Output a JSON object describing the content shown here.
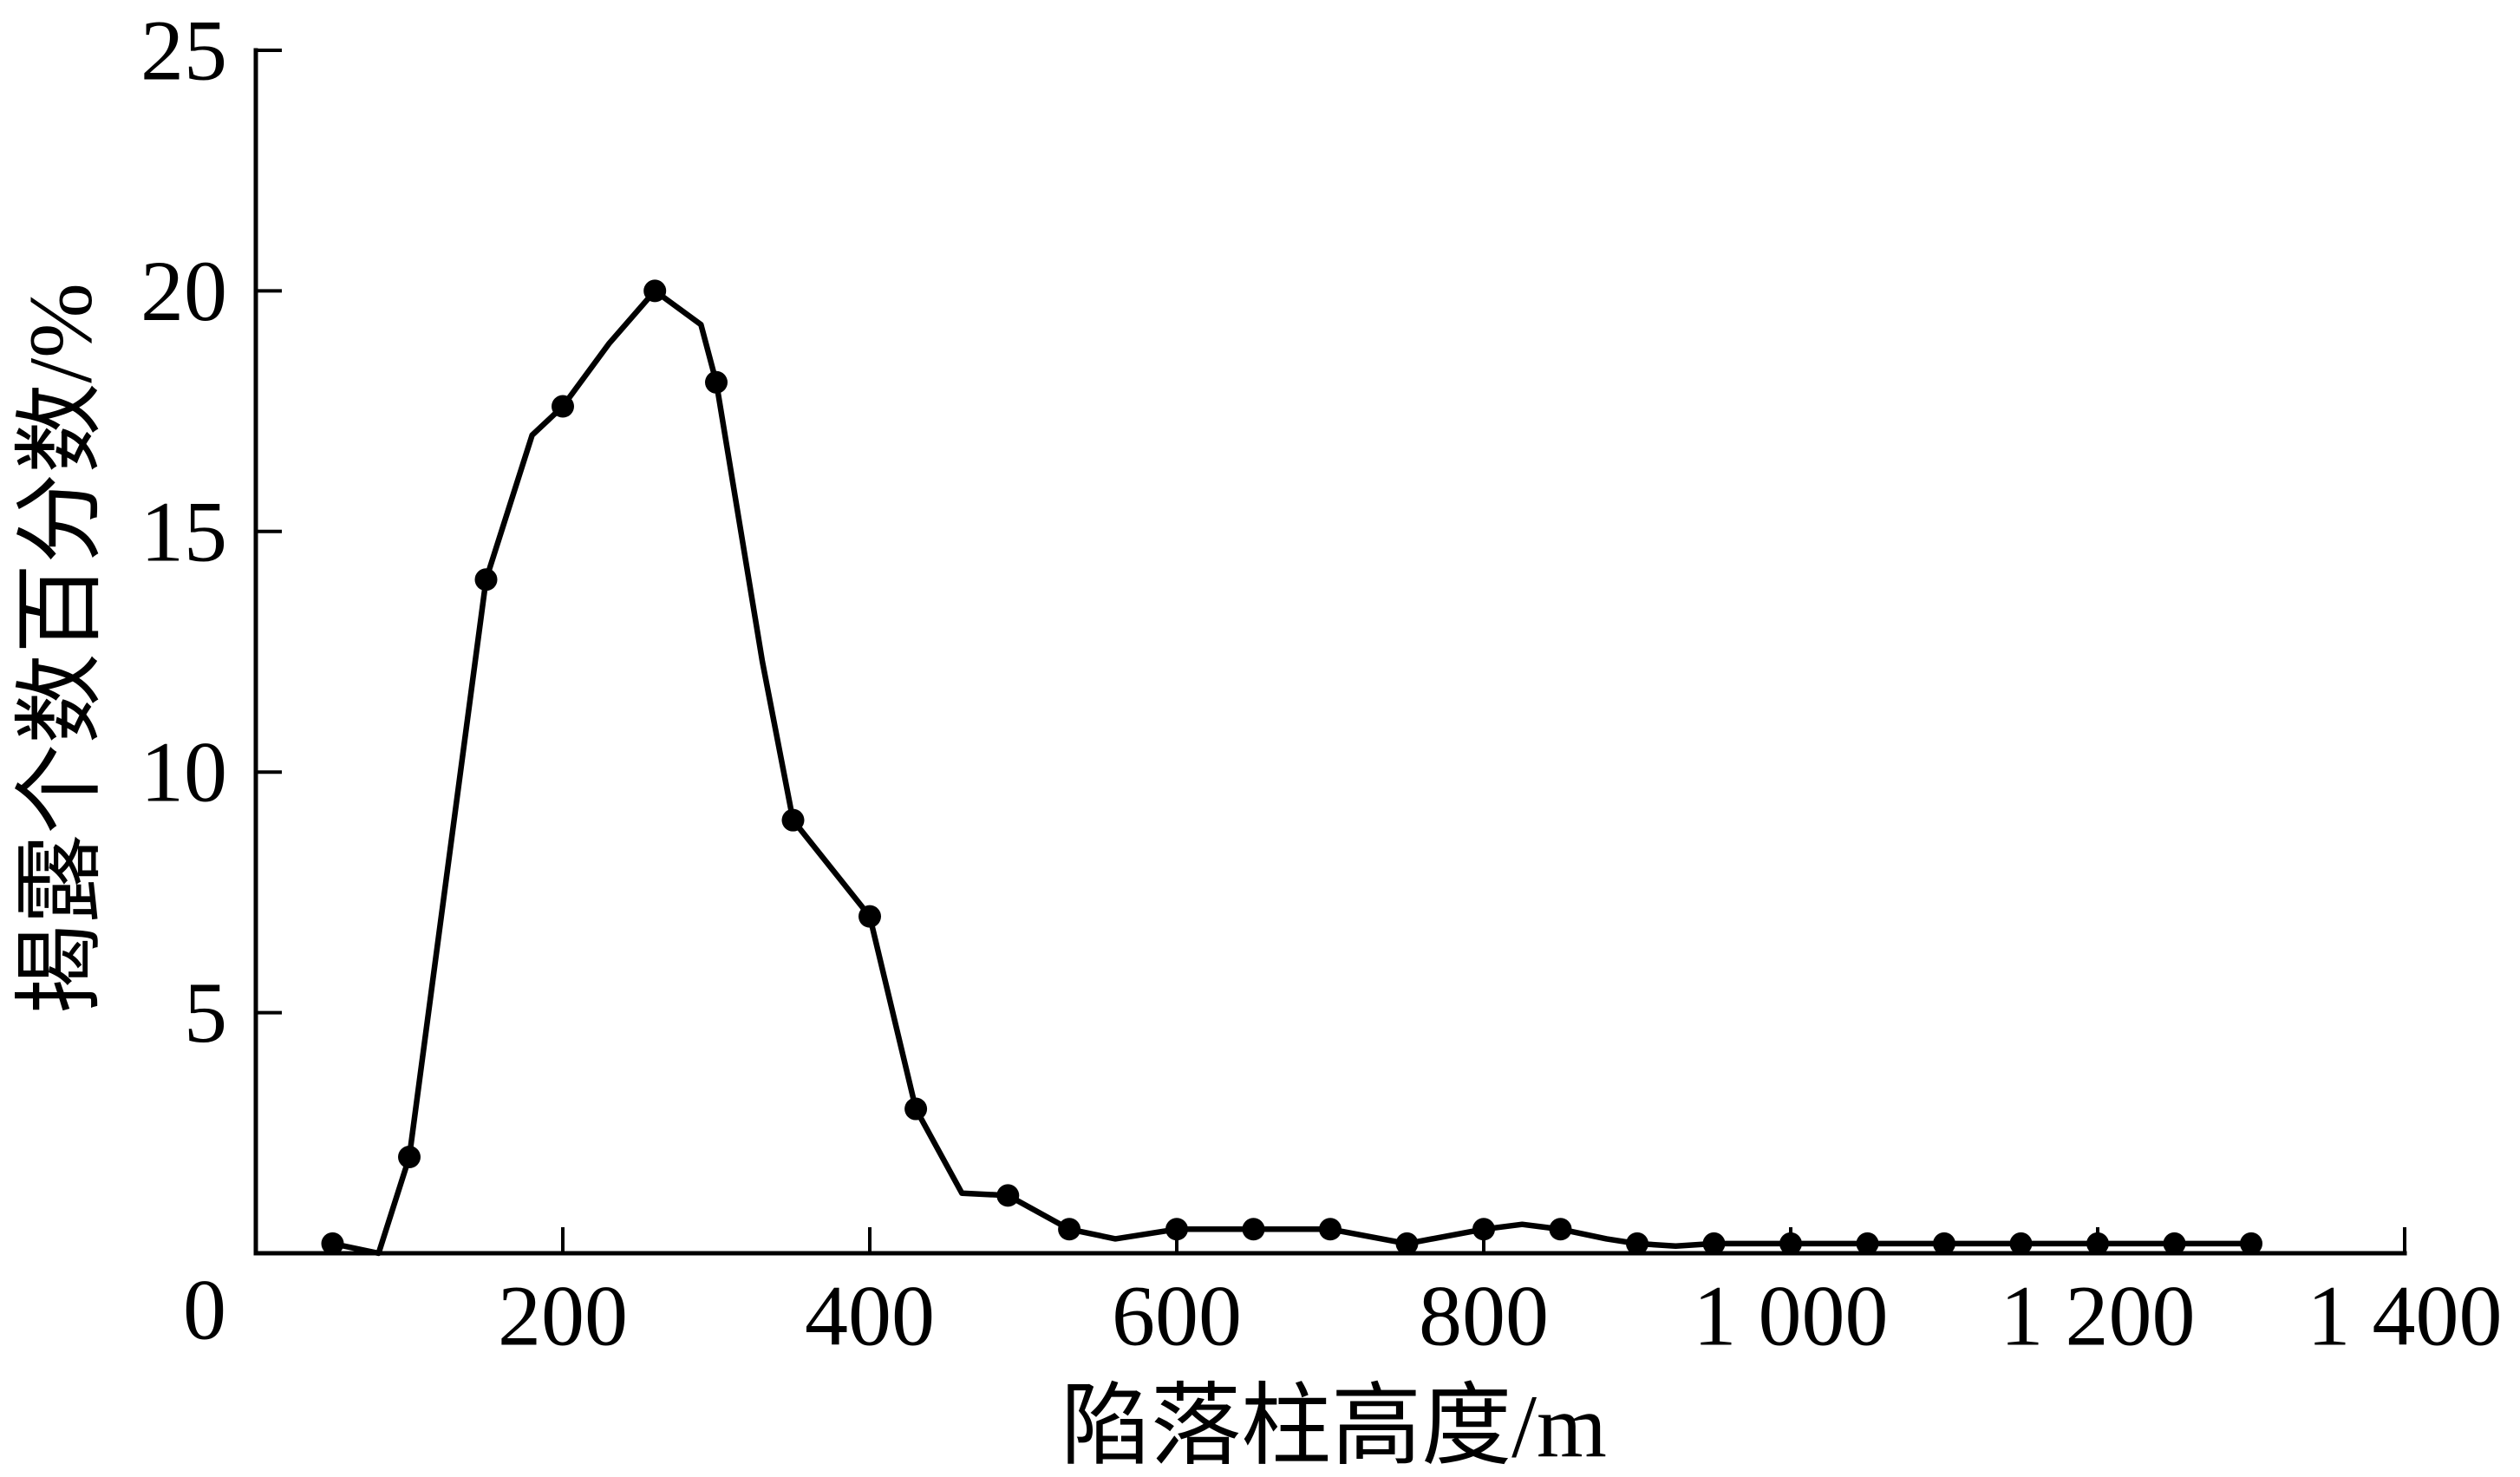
{
  "chart_data": {
    "type": "line",
    "title": "",
    "xlabel": "陷落柱高度/m",
    "ylabel": "揭露个数百分数/%",
    "xlim": [
      0,
      1400
    ],
    "ylim": [
      0,
      25
    ],
    "origin_label": "0",
    "x_ticks": [
      200,
      400,
      600,
      800,
      1000,
      1200,
      1400
    ],
    "x_tick_labels": [
      "200",
      "400",
      "600",
      "800",
      "1 000",
      "1 200",
      "1 400"
    ],
    "y_ticks": [
      5,
      10,
      15,
      20,
      25
    ],
    "y_tick_labels": [
      "5",
      "10",
      "15",
      "20",
      "25"
    ],
    "grid": false,
    "legend": "none",
    "colors": {
      "line": "#000000",
      "marker": "#000000",
      "axis": "#000000"
    },
    "series": [
      {
        "points": [
          {
            "x": 50,
            "y": 0.2,
            "marker": true
          },
          {
            "x": 80,
            "y": 0.0,
            "marker": false
          },
          {
            "x": 100,
            "y": 2.0,
            "marker": true
          },
          {
            "x": 150,
            "y": 14.0,
            "marker": true
          },
          {
            "x": 180,
            "y": 17.0,
            "marker": false
          },
          {
            "x": 200,
            "y": 17.6,
            "marker": true
          },
          {
            "x": 230,
            "y": 18.9,
            "marker": false
          },
          {
            "x": 260,
            "y": 20.0,
            "marker": true
          },
          {
            "x": 290,
            "y": 19.3,
            "marker": false
          },
          {
            "x": 300,
            "y": 18.1,
            "marker": true
          },
          {
            "x": 330,
            "y": 12.3,
            "marker": false
          },
          {
            "x": 350,
            "y": 9.0,
            "marker": true
          },
          {
            "x": 400,
            "y": 7.0,
            "marker": true
          },
          {
            "x": 430,
            "y": 3.0,
            "marker": true
          },
          {
            "x": 460,
            "y": 1.25,
            "marker": false
          },
          {
            "x": 490,
            "y": 1.2,
            "marker": true
          },
          {
            "x": 530,
            "y": 0.5,
            "marker": true
          },
          {
            "x": 560,
            "y": 0.3,
            "marker": false
          },
          {
            "x": 600,
            "y": 0.5,
            "marker": true
          },
          {
            "x": 650,
            "y": 0.5,
            "marker": true
          },
          {
            "x": 700,
            "y": 0.5,
            "marker": true
          },
          {
            "x": 750,
            "y": 0.2,
            "marker": true
          },
          {
            "x": 800,
            "y": 0.5,
            "marker": true
          },
          {
            "x": 825,
            "y": 0.6,
            "marker": false
          },
          {
            "x": 850,
            "y": 0.5,
            "marker": true
          },
          {
            "x": 880,
            "y": 0.3,
            "marker": false
          },
          {
            "x": 900,
            "y": 0.2,
            "marker": true
          },
          {
            "x": 925,
            "y": 0.15,
            "marker": false
          },
          {
            "x": 950,
            "y": 0.2,
            "marker": true
          },
          {
            "x": 1000,
            "y": 0.2,
            "marker": true
          },
          {
            "x": 1050,
            "y": 0.2,
            "marker": true
          },
          {
            "x": 1100,
            "y": 0.2,
            "marker": true
          },
          {
            "x": 1150,
            "y": 0.2,
            "marker": true
          },
          {
            "x": 1200,
            "y": 0.2,
            "marker": true
          },
          {
            "x": 1250,
            "y": 0.2,
            "marker": true
          },
          {
            "x": 1300,
            "y": 0.2,
            "marker": true
          }
        ]
      }
    ]
  }
}
